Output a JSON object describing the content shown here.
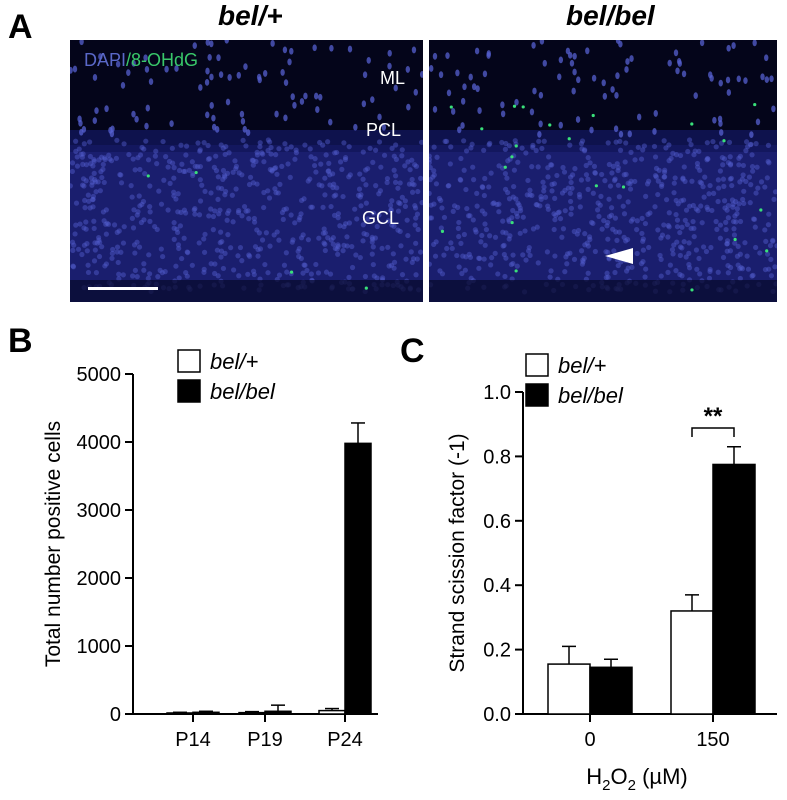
{
  "panels": {
    "a_letter": "A",
    "b_letter": "B",
    "c_letter": "C"
  },
  "micrographs": {
    "left_title": "bel/+",
    "right_title": "bel/bel",
    "stain_dapi": "DAPI",
    "stain_sep": "/",
    "stain_marker": "8-OHdG",
    "layers": [
      "ML",
      "PCL",
      "GCL"
    ],
    "colors": {
      "tissue": "#1a1e6e",
      "nuclei": "#5560d0",
      "marker": "#39e07a"
    }
  },
  "chart_data": [
    {
      "type": "bar",
      "panel": "B",
      "categories": [
        "P14",
        "P19",
        "P24"
      ],
      "series": [
        {
          "name": "bel/+",
          "values": [
            15,
            20,
            50
          ],
          "errors": [
            10,
            15,
            30
          ],
          "color": "#ffffff"
        },
        {
          "name": "bel/bel",
          "values": [
            25,
            40,
            3980
          ],
          "errors": [
            15,
            90,
            300
          ],
          "color": "#000000"
        }
      ],
      "ylabel": "Total number positive cells",
      "ylim": [
        0,
        5000
      ],
      "yticks": [
        0,
        1000,
        2000,
        3000,
        4000,
        5000
      ],
      "legend": "top-left"
    },
    {
      "type": "bar",
      "panel": "C",
      "categories": [
        "0",
        "150"
      ],
      "series": [
        {
          "name": "bel/+",
          "values": [
            0.155,
            0.32
          ],
          "errors": [
            0.055,
            0.05
          ],
          "color": "#ffffff"
        },
        {
          "name": "bel/bel",
          "values": [
            0.145,
            0.775
          ],
          "errors": [
            0.025,
            0.055
          ],
          "color": "#000000"
        }
      ],
      "ylabel": "Strand scission factor  (-1)",
      "xlabel_main": "H",
      "xlabel_sub": "2",
      "xlabel_tail": "O",
      "xlabel_sub2": "2",
      "xlabel_unit": "(µM)",
      "ylim": [
        0,
        1.0
      ],
      "yticks": [
        "0.0",
        "0.2",
        "0.4",
        "0.6",
        "0.8",
        "1.0"
      ],
      "annotation": "**",
      "legend": "top-left"
    }
  ]
}
